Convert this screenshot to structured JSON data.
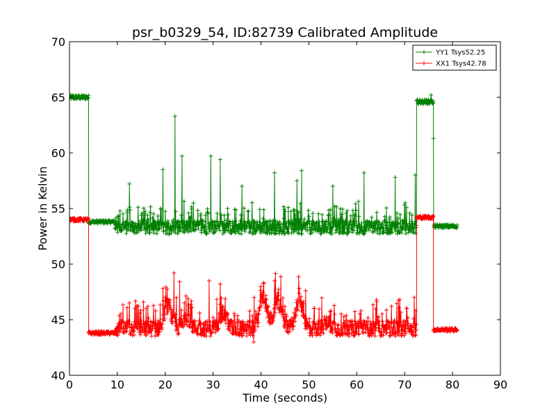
{
  "chart_data": {
    "type": "line",
    "title": "psr_b0329_54, ID:82739 Calibrated Amplitude",
    "xlabel": "Time (seconds)",
    "ylabel": "Power in Kelvin",
    "xlim": [
      0,
      90
    ],
    "ylim": [
      40,
      70
    ],
    "x_ticks": [
      "0",
      "10",
      "20",
      "30",
      "40",
      "50",
      "60",
      "70",
      "80",
      "90"
    ],
    "y_ticks": [
      "40",
      "45",
      "50",
      "55",
      "60",
      "65",
      "70"
    ],
    "grid": false,
    "legend_position": "top-right",
    "marker": "+",
    "series": [
      {
        "name": "YY1 Tsys52.25",
        "color": "#008000",
        "segments": [
          {
            "x": [
              0,
              4
            ],
            "base": 65.0,
            "noise": 0.2
          },
          {
            "x": [
              4,
              9.5
            ],
            "base": 53.8,
            "noise": 0.15
          },
          {
            "x": [
              9.5,
              72.5
            ],
            "base": 53.3,
            "noise": 0.6
          },
          {
            "x": [
              72.5,
              76
            ],
            "base": 64.6,
            "noise": 0.2
          },
          {
            "x": [
              76,
              81
            ],
            "base": 53.4,
            "noise": 0.15
          }
        ],
        "spikes": [
          {
            "x": 22.0,
            "y": 63.3
          },
          {
            "x": 23.5,
            "y": 59.7
          },
          {
            "x": 29.5,
            "y": 59.7
          },
          {
            "x": 31.5,
            "y": 59.4
          },
          {
            "x": 19.5,
            "y": 58.5
          },
          {
            "x": 42.8,
            "y": 58.2
          },
          {
            "x": 48.5,
            "y": 58.4
          },
          {
            "x": 61.5,
            "y": 58.2
          },
          {
            "x": 68.0,
            "y": 57.8
          },
          {
            "x": 72.2,
            "y": 58.0
          },
          {
            "x": 12.5,
            "y": 57.2
          },
          {
            "x": 36.0,
            "y": 57.0
          },
          {
            "x": 47.5,
            "y": 57.5
          },
          {
            "x": 55.0,
            "y": 57.0
          },
          {
            "x": 75.5,
            "y": 65.2
          },
          {
            "x": 76.0,
            "y": 61.3
          }
        ]
      },
      {
        "name": "XX1 Tsys42.78",
        "color": "#ff0000",
        "segments": [
          {
            "x": [
              0,
              4
            ],
            "base": 54.0,
            "noise": 0.15
          },
          {
            "x": [
              4,
              9.5
            ],
            "base": 43.8,
            "noise": 0.15
          },
          {
            "x": [
              9.5,
              72.5
            ],
            "base": 44.2,
            "noise": 0.7
          },
          {
            "x": [
              72.5,
              76
            ],
            "base": 54.2,
            "noise": 0.15
          },
          {
            "x": [
              76,
              81
            ],
            "base": 44.1,
            "noise": 0.15
          }
        ],
        "bumps": [
          {
            "x": 20.5,
            "y": 2.0
          },
          {
            "x": 24.5,
            "y": 1.0
          },
          {
            "x": 32.0,
            "y": 1.3
          },
          {
            "x": 40.5,
            "y": 2.8
          },
          {
            "x": 43.5,
            "y": 2.5
          },
          {
            "x": 48.0,
            "y": 2.5
          },
          {
            "x": 54.0,
            "y": 0.5
          }
        ],
        "spikes": [
          {
            "x": 21.8,
            "y": 49.2
          },
          {
            "x": 23.0,
            "y": 48.4
          },
          {
            "x": 29.2,
            "y": 48.5
          },
          {
            "x": 31.5,
            "y": 48.2
          },
          {
            "x": 42.8,
            "y": 48.5
          },
          {
            "x": 48.0,
            "y": 47.8
          },
          {
            "x": 49.3,
            "y": 47.6
          },
          {
            "x": 69.0,
            "y": 46.8
          },
          {
            "x": 72.0,
            "y": 47.0
          },
          {
            "x": 12.5,
            "y": 46.5
          },
          {
            "x": 38.5,
            "y": 43.0
          }
        ]
      }
    ]
  }
}
